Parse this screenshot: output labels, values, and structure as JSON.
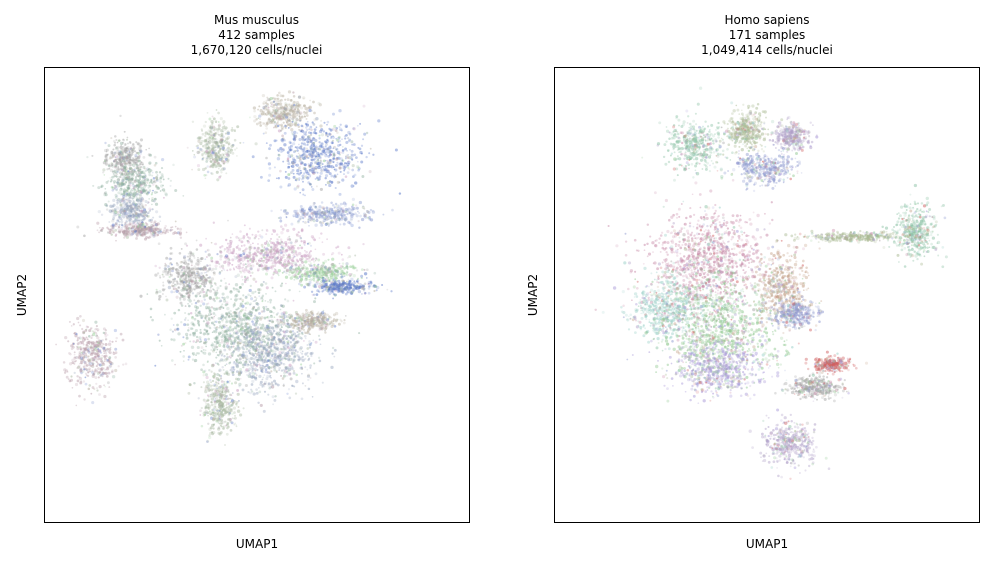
{
  "chart_data": [
    {
      "type": "scatter",
      "title_lines": [
        "Mus musculus",
        "412 samples",
        "1,670,120 cells/nuclei"
      ],
      "xlabel": "UMAP1",
      "ylabel": "UMAP2",
      "grid": false,
      "legend": "none",
      "axis_ticks": false,
      "point_colors": [
        "#a3a3a3",
        "#8fb0a0",
        "#9aa8c0",
        "#b89ca8",
        "#a8b8a0",
        "#b8b0a0",
        "#5a78c8",
        "#8a9ad0",
        "#c89cc0",
        "#9ad09a"
      ],
      "regions": [
        {
          "x": -6.2,
          "y": 6.0,
          "rx": 0.9,
          "ry": 0.8
        },
        {
          "x": -5.8,
          "y": 4.9,
          "rx": 1.4,
          "ry": 0.9
        },
        {
          "x": -6.0,
          "y": 3.7,
          "rx": 1.0,
          "ry": 0.6
        },
        {
          "x": -5.6,
          "y": 2.9,
          "rx": 1.6,
          "ry": 0.3
        },
        {
          "x": -2.0,
          "y": 6.5,
          "rx": 0.8,
          "ry": 1.1
        },
        {
          "x": 1.2,
          "y": 8.0,
          "rx": 1.3,
          "ry": 0.7
        },
        {
          "x": 2.8,
          "y": 6.2,
          "rx": 2.0,
          "ry": 1.4
        },
        {
          "x": 3.3,
          "y": 3.6,
          "rx": 1.8,
          "ry": 0.4
        },
        {
          "x": 0.5,
          "y": 1.8,
          "rx": 2.6,
          "ry": 1.0
        },
        {
          "x": 3.0,
          "y": 1.0,
          "rx": 1.6,
          "ry": 0.4
        },
        {
          "x": -3.2,
          "y": 0.8,
          "rx": 1.4,
          "ry": 1.0
        },
        {
          "x": -1.0,
          "y": -1.4,
          "rx": 3.0,
          "ry": 1.8
        },
        {
          "x": 0.5,
          "y": -2.6,
          "rx": 2.0,
          "ry": 1.6
        },
        {
          "x": -7.8,
          "y": -2.6,
          "rx": 1.1,
          "ry": 1.3
        },
        {
          "x": -1.8,
          "y": -4.8,
          "rx": 0.8,
          "ry": 1.3
        },
        {
          "x": 2.5,
          "y": -1.1,
          "rx": 1.2,
          "ry": 0.4
        },
        {
          "x": 4.0,
          "y": 0.4,
          "rx": 1.4,
          "ry": 0.3
        }
      ]
    },
    {
      "type": "scatter",
      "title_lines": [
        "Homo sapiens",
        "171 samples",
        "1,049,414 cells/nuclei"
      ],
      "xlabel": "UMAP1",
      "ylabel": "UMAP2",
      "grid": false,
      "legend": "none",
      "axis_ticks": false,
      "point_colors": [
        "#8fc4a8",
        "#a8b890",
        "#b0a0c8",
        "#8f9ad0",
        "#c88aa8",
        "#9ad0c8",
        "#90c890",
        "#a898d8",
        "#c8a890",
        "#d06060",
        "#a3a3a3"
      ],
      "regions": [
        {
          "x": -3.4,
          "y": 6.6,
          "rx": 1.3,
          "ry": 1.1
        },
        {
          "x": -1.0,
          "y": 7.3,
          "rx": 1.0,
          "ry": 0.8
        },
        {
          "x": 1.1,
          "y": 7.0,
          "rx": 0.9,
          "ry": 0.6
        },
        {
          "x": -0.2,
          "y": 5.6,
          "rx": 1.4,
          "ry": 0.7
        },
        {
          "x": -2.8,
          "y": 1.5,
          "rx": 2.8,
          "ry": 2.2
        },
        {
          "x": -4.8,
          "y": -0.6,
          "rx": 1.6,
          "ry": 1.4
        },
        {
          "x": -2.2,
          "y": -1.4,
          "rx": 2.5,
          "ry": 2.3
        },
        {
          "x": -2.4,
          "y": -3.2,
          "rx": 2.0,
          "ry": 1.1
        },
        {
          "x": 0.6,
          "y": 0.4,
          "rx": 1.2,
          "ry": 1.4
        },
        {
          "x": 3.0,
          "y": -3.0,
          "rx": 0.9,
          "ry": 0.3
        },
        {
          "x": 2.2,
          "y": -4.0,
          "rx": 1.2,
          "ry": 0.5
        },
        {
          "x": 6.9,
          "y": 2.8,
          "rx": 1.0,
          "ry": 1.2
        },
        {
          "x": 4.1,
          "y": 2.6,
          "rx": 2.4,
          "ry": 0.2
        },
        {
          "x": 1.0,
          "y": -6.5,
          "rx": 1.2,
          "ry": 1.0
        },
        {
          "x": 1.3,
          "y": -0.8,
          "rx": 1.0,
          "ry": 0.6
        }
      ]
    }
  ]
}
